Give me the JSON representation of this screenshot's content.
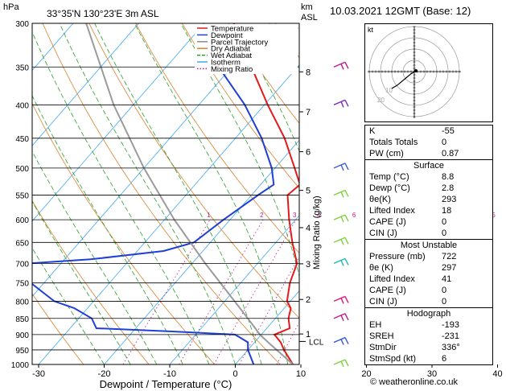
{
  "header": {
    "location": "33°35'N  130°23'E  3m  ASL",
    "hpa_label": "hPa",
    "km_label": "km",
    "asl_label": "ASL",
    "date_title": "10.03.2021  12GMT  (Base: 12)"
  },
  "legend": [
    {
      "label": "Temperature",
      "color": "#e41a1c"
    },
    {
      "label": "Dewpoint",
      "color": "#1f3fd6"
    },
    {
      "label": "Parcel Trajectory",
      "color": "#8c8c8c"
    },
    {
      "label": "Dry Adiabat",
      "color": "#d9822b"
    },
    {
      "label": "Wet Adiabat",
      "color": "#2ca02c"
    },
    {
      "label": "Isotherm",
      "color": "#3fa9f5"
    },
    {
      "label": "Mixing Ratio",
      "color": "#c2188b"
    }
  ],
  "chart_data": {
    "type": "line",
    "xlabel": "Dewpoint / Temperature (°C)",
    "ylabel": "Mixing Ratio (g/kg)",
    "x_ticks": [
      "-30",
      "-20",
      "-10",
      "0",
      "10",
      "20",
      "30",
      "40"
    ],
    "pressure_ticks": [
      300,
      350,
      400,
      450,
      500,
      550,
      600,
      650,
      700,
      750,
      800,
      850,
      900,
      950,
      1000
    ],
    "km_ticks": [
      {
        "km": "1",
        "p": 898
      },
      {
        "km": "2",
        "p": 795
      },
      {
        "km": "3",
        "p": 701
      },
      {
        "km": "4",
        "p": 617
      },
      {
        "km": "5",
        "p": 541
      },
      {
        "km": "6",
        "p": 472
      },
      {
        "km": "7",
        "p": 410
      },
      {
        "km": "8",
        "p": 356
      }
    ],
    "lcl": {
      "label": "LCL",
      "p": 922
    },
    "mixing_ratio_labels": [
      "1",
      "2",
      "3",
      "4",
      "6",
      "8",
      "10",
      "15",
      "20",
      "25"
    ],
    "mixing_ratio_values": [
      1,
      2,
      3,
      4,
      6,
      8,
      10,
      15,
      20,
      25
    ],
    "xlim": [
      -35,
      40
    ],
    "plim": [
      1000,
      300
    ],
    "series": [
      {
        "name": "Temperature",
        "color": "#e41a1c",
        "points": [
          [
            1000,
            8.8
          ],
          [
            950,
            5.5
          ],
          [
            925,
            4.0
          ],
          [
            900,
            2.0
          ],
          [
            880,
            3.5
          ],
          [
            850,
            2.0
          ],
          [
            820,
            1.0
          ],
          [
            800,
            -0.5
          ],
          [
            750,
            -2.5
          ],
          [
            700,
            -4.0
          ],
          [
            650,
            -7.5
          ],
          [
            600,
            -11.0
          ],
          [
            550,
            -14.5
          ],
          [
            530,
            -14.0
          ],
          [
            500,
            -17.0
          ],
          [
            450,
            -22.5
          ],
          [
            400,
            -29.5
          ],
          [
            350,
            -37.0
          ],
          [
            300,
            -45.5
          ]
        ]
      },
      {
        "name": "Dewpoint",
        "color": "#1f3fd6",
        "points": [
          [
            1000,
            2.8
          ],
          [
            950,
            0.0
          ],
          [
            925,
            -1.0
          ],
          [
            900,
            -4.0
          ],
          [
            890,
            -14.0
          ],
          [
            880,
            -26.0
          ],
          [
            850,
            -28.0
          ],
          [
            820,
            -32.0
          ],
          [
            800,
            -36.0
          ],
          [
            750,
            -42.0
          ],
          [
            700,
            -45.0
          ],
          [
            690,
            -36.0
          ],
          [
            670,
            -26.0
          ],
          [
            650,
            -22.5
          ],
          [
            600,
            -21.0
          ],
          [
            550,
            -19.0
          ],
          [
            530,
            -18.0
          ],
          [
            500,
            -20.5
          ],
          [
            450,
            -26.0
          ],
          [
            400,
            -33.0
          ],
          [
            350,
            -42.0
          ],
          [
            310,
            -50.0
          ]
        ]
      },
      {
        "name": "Parcel Trajectory",
        "color": "#9b9b9b",
        "points": [
          [
            1000,
            8.8
          ],
          [
            922,
            1.8
          ],
          [
            900,
            -0.2
          ],
          [
            850,
            -4.2
          ],
          [
            800,
            -8.5
          ],
          [
            700,
            -18.0
          ],
          [
            600,
            -28.5
          ],
          [
            500,
            -40.0
          ],
          [
            400,
            -53.0
          ],
          [
            300,
            -68.0
          ]
        ]
      }
    ],
    "wind_barbs": [
      {
        "p": 1000,
        "color": "#7fd13b"
      },
      {
        "p": 925,
        "color": "#3a5bd9"
      },
      {
        "p": 850,
        "color": "#c2188b"
      },
      {
        "p": 800,
        "color": "#e0157a"
      },
      {
        "p": 700,
        "color": "#22b5b5"
      },
      {
        "p": 650,
        "color": "#7fd13b"
      },
      {
        "p": 600,
        "color": "#7fd13b"
      },
      {
        "p": 550,
        "color": "#7fd13b"
      },
      {
        "p": 500,
        "color": "#3a5bd9"
      },
      {
        "p": 400,
        "color": "#7b2fbe"
      },
      {
        "p": 350,
        "color": "#c2188b"
      }
    ]
  },
  "hodograph": {
    "unit_label": "kt",
    "ring_labels": [
      "10",
      "20"
    ],
    "trace": [
      [
        0,
        0
      ],
      [
        2,
        1
      ],
      [
        -3,
        -2
      ],
      [
        -15,
        -12
      ],
      [
        -20,
        -15
      ]
    ]
  },
  "indices": [
    {
      "label": "K",
      "value": "-55"
    },
    {
      "label": "Totals Totals",
      "value": "0"
    },
    {
      "label": "PW (cm)",
      "value": "0.87"
    }
  ],
  "surface": {
    "title": "Surface",
    "rows": [
      {
        "label": "Temp (°C)",
        "value": "8.8"
      },
      {
        "label": "Dewp (°C)",
        "value": "2.8"
      },
      {
        "label": "θe(K)",
        "value": "293"
      },
      {
        "label": "Lifted Index",
        "value": "18"
      },
      {
        "label": "CAPE (J)",
        "value": "0"
      },
      {
        "label": "CIN (J)",
        "value": "0"
      }
    ]
  },
  "most_unstable": {
    "title": "Most Unstable",
    "rows": [
      {
        "label": "Pressure (mb)",
        "value": "722"
      },
      {
        "label": "θe (K)",
        "value": "297"
      },
      {
        "label": "Lifted Index",
        "value": "41"
      },
      {
        "label": "CAPE (J)",
        "value": "0"
      },
      {
        "label": "CIN (J)",
        "value": "0"
      }
    ]
  },
  "hodograph_stats": {
    "title": "Hodograph",
    "rows": [
      {
        "label": "EH",
        "value": "-193"
      },
      {
        "label": "SREH",
        "value": "-231"
      },
      {
        "label": "StmDir",
        "value": "336°"
      },
      {
        "label": "StmSpd (kt)",
        "value": "6"
      }
    ]
  },
  "footer": {
    "credit": "© weatheronline.co.uk"
  }
}
